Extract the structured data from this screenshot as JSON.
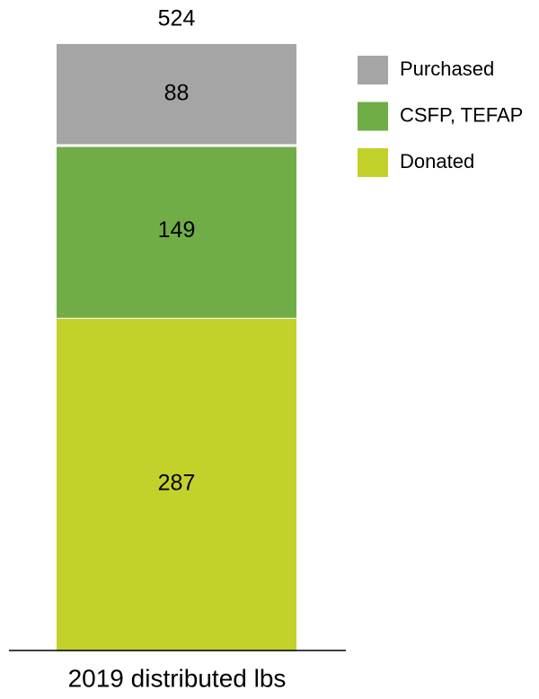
{
  "chart_data": {
    "type": "stacked_bar",
    "categories": [
      "2019 distributed lbs"
    ],
    "series": [
      {
        "name": "Donated",
        "color": "#c3d12b",
        "values": [
          287
        ]
      },
      {
        "name": "CSFP, TEFAP",
        "color": "#70ad47",
        "values": [
          149
        ]
      },
      {
        "name": "Purchased",
        "color": "#a5a5a5",
        "values": [
          88
        ]
      }
    ],
    "totals": [
      524
    ]
  }
}
